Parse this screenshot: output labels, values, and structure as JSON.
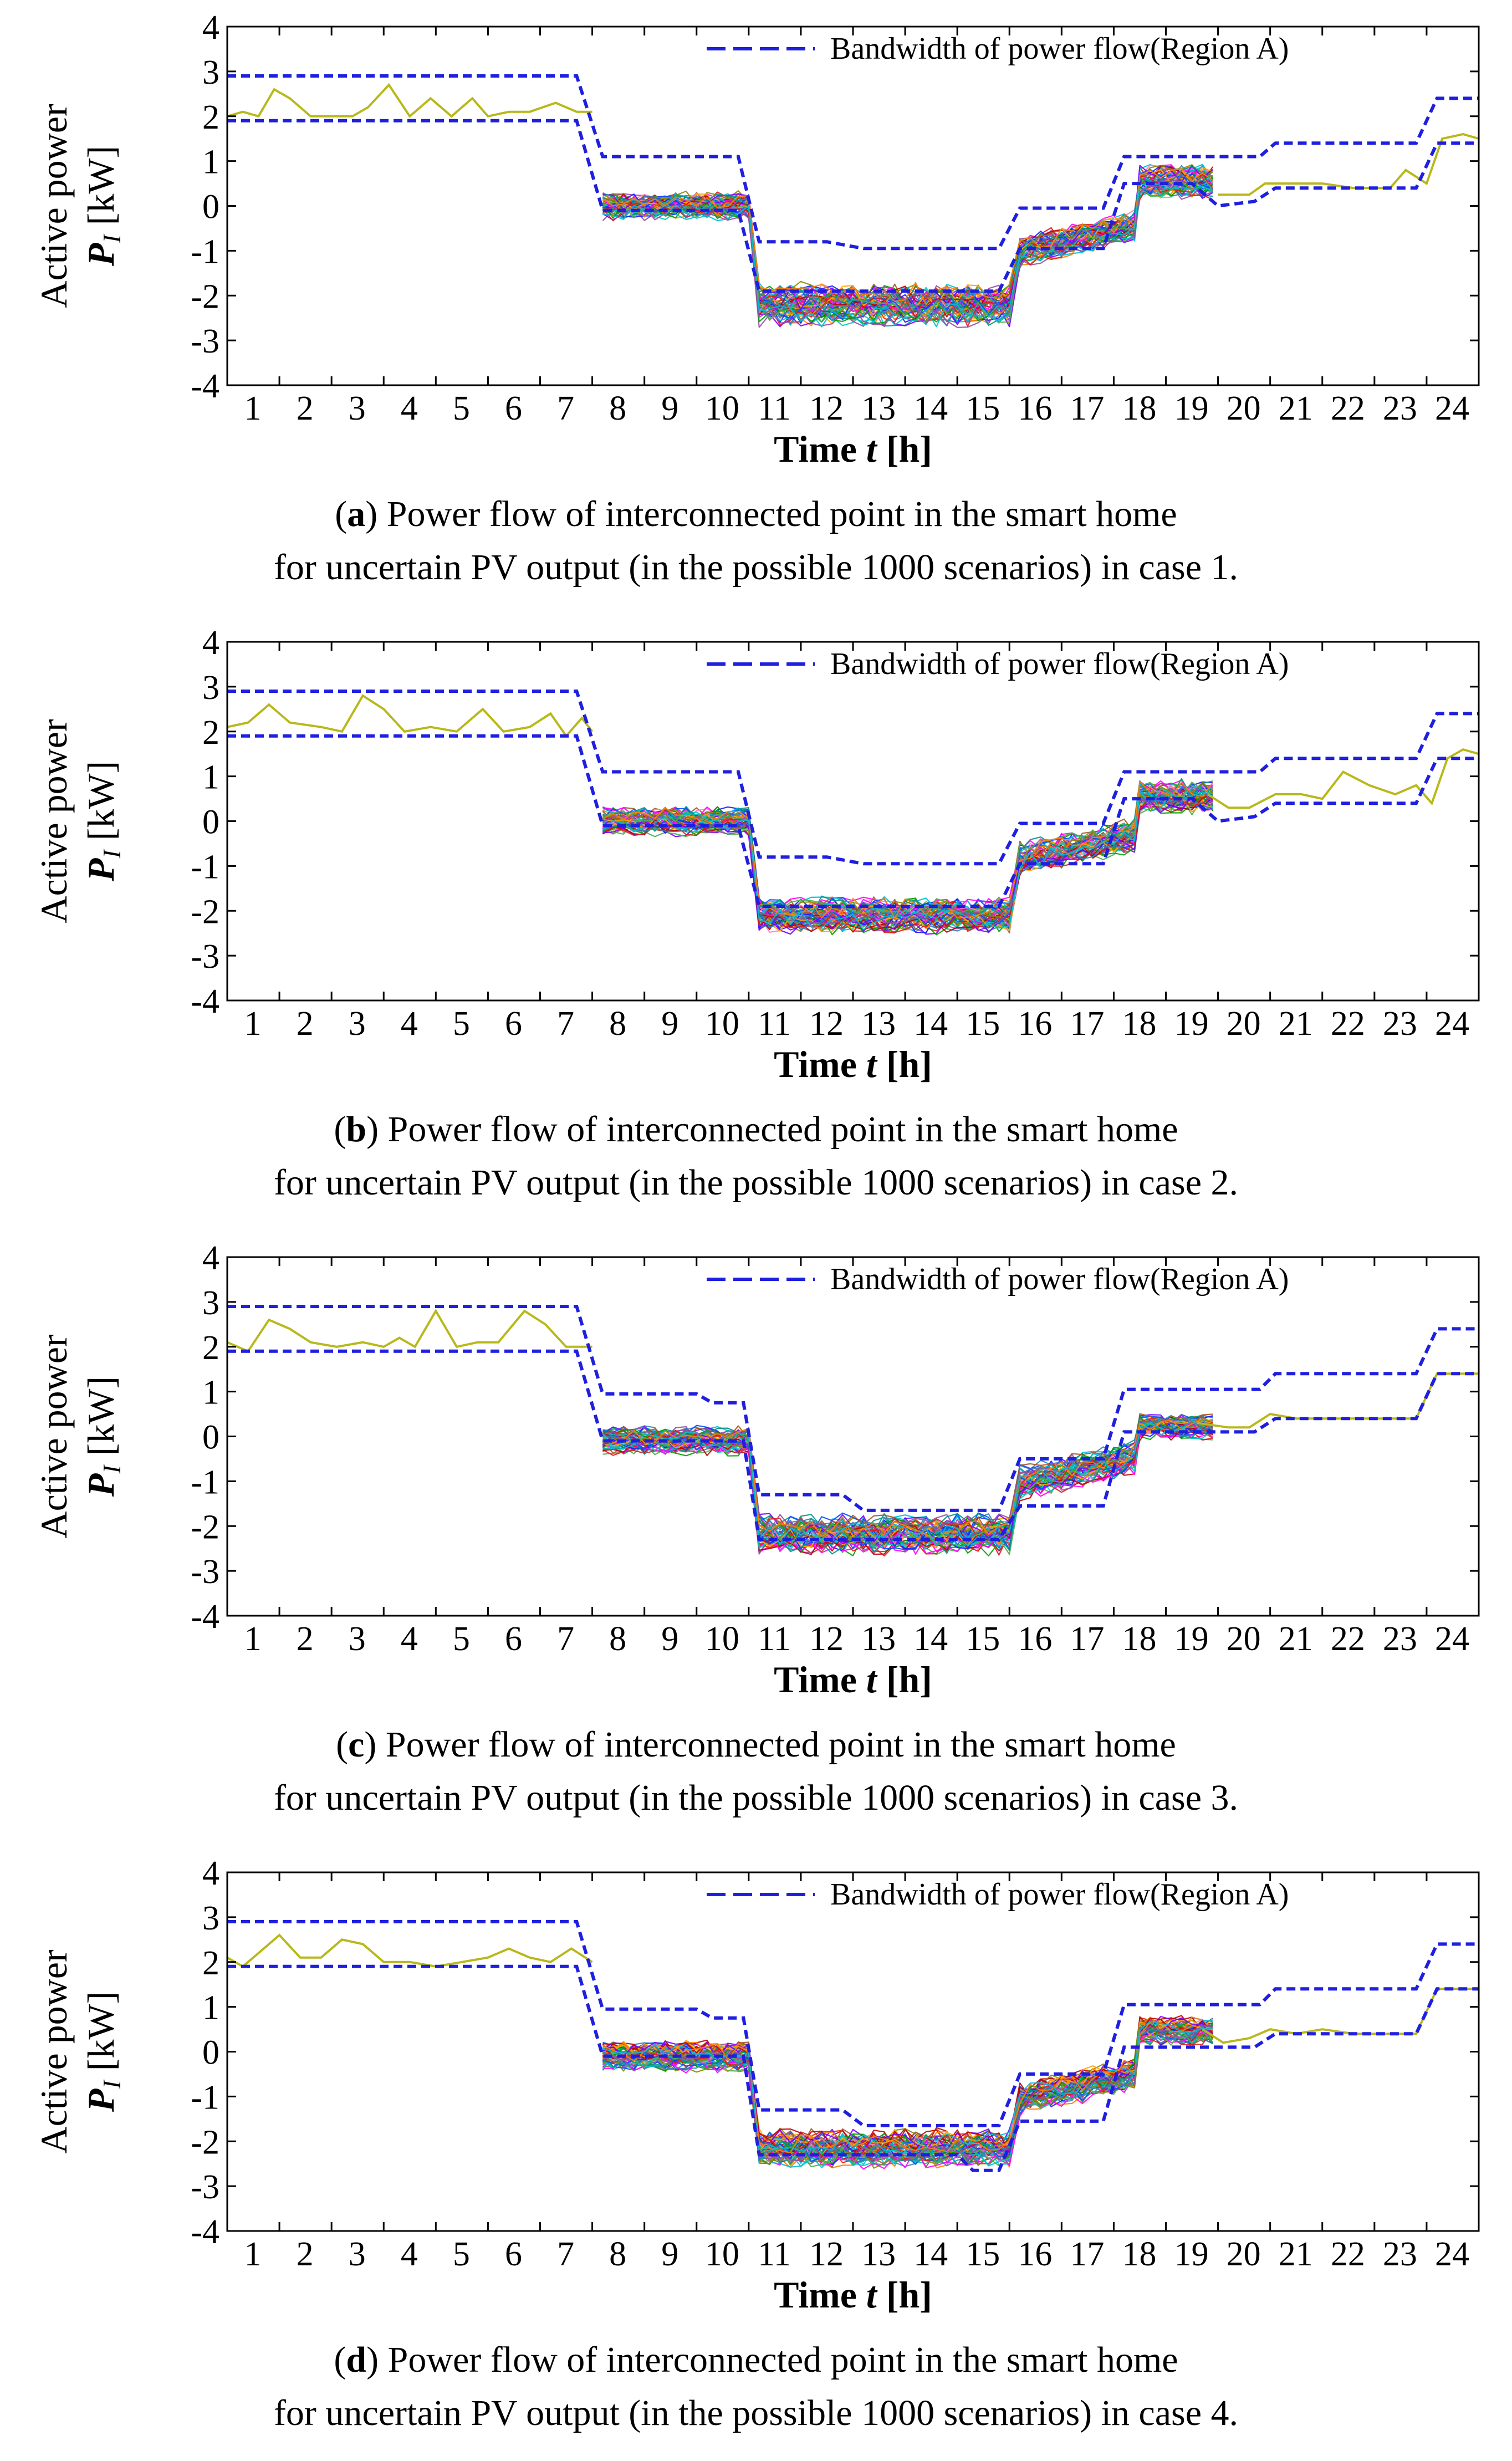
{
  "chart_data": [
    {
      "panel": "a",
      "type": "line",
      "ylabel_line1": "Active power",
      "ylabel_symbol": "P",
      "ylabel_subscript": "I",
      "ylabel_unit": "[kW]",
      "xlabel_prefix": "Time",
      "xlabel_symbol": "t",
      "xlabel_unit": "[h]",
      "xlim": [
        0,
        24
      ],
      "ylim": [
        -4,
        4
      ],
      "xticks": [
        "1",
        "2",
        "3",
        "4",
        "5",
        "6",
        "7",
        "8",
        "9",
        "10",
        "11",
        "12",
        "13",
        "14",
        "15",
        "16",
        "17",
        "18",
        "19",
        "20",
        "21",
        "22",
        "23",
        "24"
      ],
      "yticks": [
        "4",
        "3",
        "2",
        "1",
        "0",
        "-1",
        "-2",
        "-3",
        "-4"
      ],
      "legend": "Bandwidth of power flow(Region A)",
      "legend_position": "top-right",
      "scenario_count": 1000,
      "band_upper": [
        [
          0,
          2.9
        ],
        [
          6.7,
          2.9
        ],
        [
          7.2,
          1.1
        ],
        [
          9.8,
          1.1
        ],
        [
          10.2,
          -0.8
        ],
        [
          11.5,
          -0.8
        ],
        [
          12.2,
          -0.95
        ],
        [
          14.8,
          -0.95
        ],
        [
          15.2,
          -0.05
        ],
        [
          16.8,
          -0.05
        ],
        [
          17.2,
          1.1
        ],
        [
          19.8,
          1.1
        ],
        [
          20.1,
          1.4
        ],
        [
          22.8,
          1.4
        ],
        [
          23.2,
          2.4
        ],
        [
          24,
          2.4
        ]
      ],
      "band_lower": [
        [
          0,
          1.9
        ],
        [
          6.7,
          1.9
        ],
        [
          7.2,
          -0.1
        ],
        [
          9.8,
          -0.1
        ],
        [
          10.2,
          -1.9
        ],
        [
          14.8,
          -1.9
        ],
        [
          15.2,
          -0.95
        ],
        [
          16.8,
          -0.95
        ],
        [
          17.2,
          0.5
        ],
        [
          18.5,
          0.5
        ],
        [
          19.0,
          0.0
        ],
        [
          19.7,
          0.1
        ],
        [
          20.1,
          0.4
        ],
        [
          22.8,
          0.4
        ],
        [
          23.2,
          1.4
        ],
        [
          24,
          1.4
        ]
      ],
      "pv_line": [
        [
          0,
          2.0
        ],
        [
          0.3,
          2.1
        ],
        [
          0.6,
          2.0
        ],
        [
          0.9,
          2.6
        ],
        [
          1.2,
          2.4
        ],
        [
          1.6,
          2.0
        ],
        [
          2,
          2.0
        ],
        [
          2.4,
          2.0
        ],
        [
          2.7,
          2.2
        ],
        [
          3.1,
          2.7
        ],
        [
          3.5,
          2.0
        ],
        [
          3.9,
          2.4
        ],
        [
          4.3,
          2.0
        ],
        [
          4.7,
          2.4
        ],
        [
          5.0,
          2.0
        ],
        [
          5.4,
          2.1
        ],
        [
          5.8,
          2.1
        ],
        [
          6.3,
          2.3
        ],
        [
          6.7,
          2.1
        ],
        [
          7.0,
          2.1
        ]
      ],
      "pv_tail": [
        [
          19.0,
          0.25
        ],
        [
          19.6,
          0.25
        ],
        [
          19.9,
          0.5
        ],
        [
          20.4,
          0.5
        ],
        [
          21,
          0.5
        ],
        [
          21.6,
          0.4
        ],
        [
          22.3,
          0.4
        ],
        [
          22.6,
          0.8
        ],
        [
          23.0,
          0.5
        ],
        [
          23.3,
          1.5
        ],
        [
          23.7,
          1.6
        ],
        [
          24,
          1.5
        ]
      ],
      "envelope_mid": [
        0.0,
        -2.2,
        -1.0,
        0.55
      ],
      "envelope_half": [
        0.28,
        0.42,
        0.32,
        0.35
      ]
    },
    {
      "panel": "b",
      "type": "line",
      "ylabel_line1": "Active power",
      "ylabel_symbol": "P",
      "ylabel_subscript": "I",
      "ylabel_unit": "[kW]",
      "xlabel_prefix": "Time",
      "xlabel_symbol": "t",
      "xlabel_unit": "[h]",
      "xlim": [
        0,
        24
      ],
      "ylim": [
        -4,
        4
      ],
      "xticks": [
        "1",
        "2",
        "3",
        "4",
        "5",
        "6",
        "7",
        "8",
        "9",
        "10",
        "11",
        "12",
        "13",
        "14",
        "15",
        "16",
        "17",
        "18",
        "19",
        "20",
        "21",
        "22",
        "23",
        "24"
      ],
      "yticks": [
        "4",
        "3",
        "2",
        "1",
        "0",
        "-1",
        "-2",
        "-3",
        "-4"
      ],
      "legend": "Bandwidth of power flow(Region A)",
      "legend_position": "top-right",
      "scenario_count": 1000,
      "band_upper": [
        [
          0,
          2.9
        ],
        [
          6.7,
          2.9
        ],
        [
          7.2,
          1.1
        ],
        [
          9.8,
          1.1
        ],
        [
          10.2,
          -0.8
        ],
        [
          11.5,
          -0.8
        ],
        [
          12.2,
          -0.95
        ],
        [
          14.8,
          -0.95
        ],
        [
          15.2,
          -0.05
        ],
        [
          16.8,
          -0.05
        ],
        [
          17.2,
          1.1
        ],
        [
          19.8,
          1.1
        ],
        [
          20.1,
          1.4
        ],
        [
          22.8,
          1.4
        ],
        [
          23.2,
          2.4
        ],
        [
          24,
          2.4
        ]
      ],
      "band_lower": [
        [
          0,
          1.9
        ],
        [
          6.7,
          1.9
        ],
        [
          7.2,
          -0.1
        ],
        [
          9.8,
          -0.1
        ],
        [
          10.2,
          -1.9
        ],
        [
          14.8,
          -1.9
        ],
        [
          15.2,
          -0.95
        ],
        [
          16.8,
          -0.95
        ],
        [
          17.2,
          0.5
        ],
        [
          18.5,
          0.5
        ],
        [
          19.0,
          0.0
        ],
        [
          19.7,
          0.1
        ],
        [
          20.1,
          0.4
        ],
        [
          22.8,
          0.4
        ],
        [
          23.2,
          1.4
        ],
        [
          24,
          1.4
        ]
      ],
      "pv_line": [
        [
          0,
          2.1
        ],
        [
          0.4,
          2.2
        ],
        [
          0.8,
          2.6
        ],
        [
          1.2,
          2.2
        ],
        [
          1.8,
          2.1
        ],
        [
          2.2,
          2.0
        ],
        [
          2.6,
          2.8
        ],
        [
          3.0,
          2.5
        ],
        [
          3.4,
          2.0
        ],
        [
          3.9,
          2.1
        ],
        [
          4.4,
          2.0
        ],
        [
          4.9,
          2.5
        ],
        [
          5.3,
          2.0
        ],
        [
          5.8,
          2.1
        ],
        [
          6.2,
          2.4
        ],
        [
          6.5,
          1.9
        ],
        [
          6.8,
          2.3
        ],
        [
          7.0,
          2.0
        ]
      ],
      "pv_tail": [
        [
          18.8,
          0.6
        ],
        [
          19.2,
          0.3
        ],
        [
          19.6,
          0.3
        ],
        [
          20.1,
          0.6
        ],
        [
          20.6,
          0.6
        ],
        [
          21,
          0.5
        ],
        [
          21.4,
          1.1
        ],
        [
          21.9,
          0.8
        ],
        [
          22.4,
          0.6
        ],
        [
          22.8,
          0.8
        ],
        [
          23.1,
          0.4
        ],
        [
          23.4,
          1.4
        ],
        [
          23.7,
          1.6
        ],
        [
          24,
          1.5
        ]
      ],
      "envelope_mid": [
        0.0,
        -2.1,
        -0.85,
        0.55
      ],
      "envelope_half": [
        0.28,
        0.35,
        0.33,
        0.33
      ]
    },
    {
      "panel": "c",
      "type": "line",
      "ylabel_line1": "Active power",
      "ylabel_symbol": "P",
      "ylabel_subscript": "I",
      "ylabel_unit": "[kW]",
      "xlabel_prefix": "Time",
      "xlabel_symbol": "t",
      "xlabel_unit": "[h]",
      "xlim": [
        0,
        24
      ],
      "ylim": [
        -4,
        4
      ],
      "xticks": [
        "1",
        "2",
        "3",
        "4",
        "5",
        "6",
        "7",
        "8",
        "9",
        "10",
        "11",
        "12",
        "13",
        "14",
        "15",
        "16",
        "17",
        "18",
        "19",
        "20",
        "21",
        "22",
        "23",
        "24"
      ],
      "yticks": [
        "4",
        "3",
        "2",
        "1",
        "0",
        "-1",
        "-2",
        "-3",
        "-4"
      ],
      "legend": "Bandwidth of power flow(Region A)",
      "legend_position": "top-right",
      "scenario_count": 1000,
      "band_upper": [
        [
          0,
          2.9
        ],
        [
          6.7,
          2.9
        ],
        [
          7.2,
          0.95
        ],
        [
          9.0,
          0.95
        ],
        [
          9.3,
          0.75
        ],
        [
          9.9,
          0.75
        ],
        [
          10.2,
          -1.3
        ],
        [
          11.8,
          -1.3
        ],
        [
          12.2,
          -1.65
        ],
        [
          14.8,
          -1.65
        ],
        [
          15.2,
          -0.5
        ],
        [
          16.8,
          -0.5
        ],
        [
          17.2,
          1.05
        ],
        [
          19.8,
          1.05
        ],
        [
          20.1,
          1.4
        ],
        [
          22.8,
          1.4
        ],
        [
          23.2,
          2.4
        ],
        [
          24,
          2.4
        ]
      ],
      "band_lower": [
        [
          0,
          1.9
        ],
        [
          6.7,
          1.9
        ],
        [
          7.2,
          -0.1
        ],
        [
          9.9,
          -0.1
        ],
        [
          10.2,
          -2.3
        ],
        [
          14.8,
          -2.3
        ],
        [
          15.2,
          -1.55
        ],
        [
          16.8,
          -1.55
        ],
        [
          17.2,
          0.1
        ],
        [
          18.5,
          0.1
        ],
        [
          19.0,
          0.1
        ],
        [
          19.7,
          0.1
        ],
        [
          20.1,
          0.4
        ],
        [
          22.8,
          0.4
        ],
        [
          23.2,
          1.4
        ],
        [
          24,
          1.4
        ]
      ],
      "pv_line": [
        [
          0,
          2.1
        ],
        [
          0.4,
          1.9
        ],
        [
          0.8,
          2.6
        ],
        [
          1.2,
          2.4
        ],
        [
          1.6,
          2.1
        ],
        [
          2.1,
          2.0
        ],
        [
          2.6,
          2.1
        ],
        [
          3.0,
          2.0
        ],
        [
          3.3,
          2.2
        ],
        [
          3.6,
          2.0
        ],
        [
          4.0,
          2.8
        ],
        [
          4.4,
          2.0
        ],
        [
          4.8,
          2.1
        ],
        [
          5.2,
          2.1
        ],
        [
          5.7,
          2.8
        ],
        [
          6.1,
          2.5
        ],
        [
          6.5,
          2.0
        ],
        [
          7.0,
          2.0
        ]
      ],
      "pv_tail": [
        [
          18.6,
          0.3
        ],
        [
          19.2,
          0.2
        ],
        [
          19.6,
          0.2
        ],
        [
          20.0,
          0.5
        ],
        [
          20.5,
          0.4
        ],
        [
          22.8,
          0.4
        ],
        [
          23.2,
          1.4
        ],
        [
          24,
          1.4
        ]
      ],
      "envelope_mid": [
        -0.1,
        -2.2,
        -1.05,
        0.2
      ],
      "envelope_half": [
        0.28,
        0.4,
        0.35,
        0.25
      ]
    },
    {
      "panel": "d",
      "type": "line",
      "ylabel_line1": "Active power",
      "ylabel_symbol": "P",
      "ylabel_subscript": "I",
      "ylabel_unit": "[kW]",
      "xlabel_prefix": "Time",
      "xlabel_symbol": "t",
      "xlabel_unit": "[h]",
      "xlim": [
        0,
        24
      ],
      "ylim": [
        -4,
        4
      ],
      "xticks": [
        "1",
        "2",
        "3",
        "4",
        "5",
        "6",
        "7",
        "8",
        "9",
        "10",
        "11",
        "12",
        "13",
        "14",
        "15",
        "16",
        "17",
        "18",
        "19",
        "20",
        "21",
        "22",
        "23",
        "24"
      ],
      "yticks": [
        "4",
        "3",
        "2",
        "1",
        "0",
        "-1",
        "-2",
        "-3",
        "-4"
      ],
      "legend": "Bandwidth of power flow(Region A)",
      "legend_position": "top-right",
      "scenario_count": 1000,
      "band_upper": [
        [
          0,
          2.9
        ],
        [
          6.7,
          2.9
        ],
        [
          7.2,
          0.95
        ],
        [
          9.0,
          0.95
        ],
        [
          9.3,
          0.75
        ],
        [
          9.9,
          0.75
        ],
        [
          10.2,
          -1.3
        ],
        [
          11.8,
          -1.3
        ],
        [
          12.2,
          -1.65
        ],
        [
          14.8,
          -1.65
        ],
        [
          15.2,
          -0.5
        ],
        [
          16.8,
          -0.5
        ],
        [
          17.2,
          1.05
        ],
        [
          19.8,
          1.05
        ],
        [
          20.1,
          1.4
        ],
        [
          22.8,
          1.4
        ],
        [
          23.2,
          2.4
        ],
        [
          24,
          2.4
        ]
      ],
      "band_lower": [
        [
          0,
          1.9
        ],
        [
          6.7,
          1.9
        ],
        [
          7.2,
          -0.1
        ],
        [
          9.9,
          -0.1
        ],
        [
          10.2,
          -2.3
        ],
        [
          14.0,
          -2.3
        ],
        [
          14.3,
          -2.65
        ],
        [
          14.8,
          -2.65
        ],
        [
          15.2,
          -1.55
        ],
        [
          16.8,
          -1.55
        ],
        [
          17.2,
          0.1
        ],
        [
          18.5,
          0.1
        ],
        [
          19.0,
          0.1
        ],
        [
          19.7,
          0.1
        ],
        [
          20.1,
          0.4
        ],
        [
          22.8,
          0.4
        ],
        [
          23.2,
          1.4
        ],
        [
          24,
          1.4
        ]
      ],
      "pv_line": [
        [
          0,
          2.1
        ],
        [
          0.3,
          1.9
        ],
        [
          0.6,
          2.2
        ],
        [
          1.0,
          2.6
        ],
        [
          1.4,
          2.1
        ],
        [
          1.8,
          2.1
        ],
        [
          2.2,
          2.5
        ],
        [
          2.6,
          2.4
        ],
        [
          3.0,
          2.0
        ],
        [
          3.5,
          2.0
        ],
        [
          4.0,
          1.9
        ],
        [
          4.5,
          2.0
        ],
        [
          5.0,
          2.1
        ],
        [
          5.4,
          2.3
        ],
        [
          5.8,
          2.1
        ],
        [
          6.2,
          2.0
        ],
        [
          6.6,
          2.3
        ],
        [
          7.0,
          2.0
        ]
      ],
      "pv_tail": [
        [
          18.7,
          0.5
        ],
        [
          19.1,
          0.2
        ],
        [
          19.6,
          0.3
        ],
        [
          20.0,
          0.5
        ],
        [
          20.5,
          0.4
        ],
        [
          21,
          0.5
        ],
        [
          21.6,
          0.4
        ],
        [
          22.8,
          0.4
        ],
        [
          23.2,
          1.4
        ],
        [
          24,
          1.4
        ]
      ],
      "envelope_mid": [
        -0.1,
        -2.15,
        -1.05,
        0.45
      ],
      "envelope_half": [
        0.3,
        0.38,
        0.33,
        0.3
      ]
    }
  ],
  "captions": [
    {
      "label": "a",
      "line1": "  Power flow of interconnected point in the smart home",
      "line2": "for uncertain PV output (in the possible 1000 scenarios) in case 1."
    },
    {
      "label": "b",
      "line1": "  Power flow of interconnected point in the smart home",
      "line2": "for uncertain PV output (in the possible 1000 scenarios) in case 2."
    },
    {
      "label": "c",
      "line1": "  Power flow of interconnected point in the smart home",
      "line2": "for uncertain PV output (in the possible 1000 scenarios) in case 3."
    },
    {
      "label": "d",
      "line1": "  Power flow of interconnected point in the smart home",
      "line2": "for uncertain PV output (in the possible 1000 scenarios) in case 4."
    }
  ],
  "colors": {
    "band": "#1f1fe0",
    "pv": "#b8b81a",
    "axis": "#000000",
    "scenario_palette": [
      "#e41a1c",
      "#377eb8",
      "#4daf4a",
      "#984ea3",
      "#ff7f00",
      "#00bcd4",
      "#a65628",
      "#f781bf",
      "#1a1aff",
      "#00a000",
      "#ff00ff",
      "#00c8c8",
      "#c00000",
      "#8a8a00",
      "#0050ff",
      "#ffa500",
      "#7b00ff",
      "#009688"
    ]
  }
}
